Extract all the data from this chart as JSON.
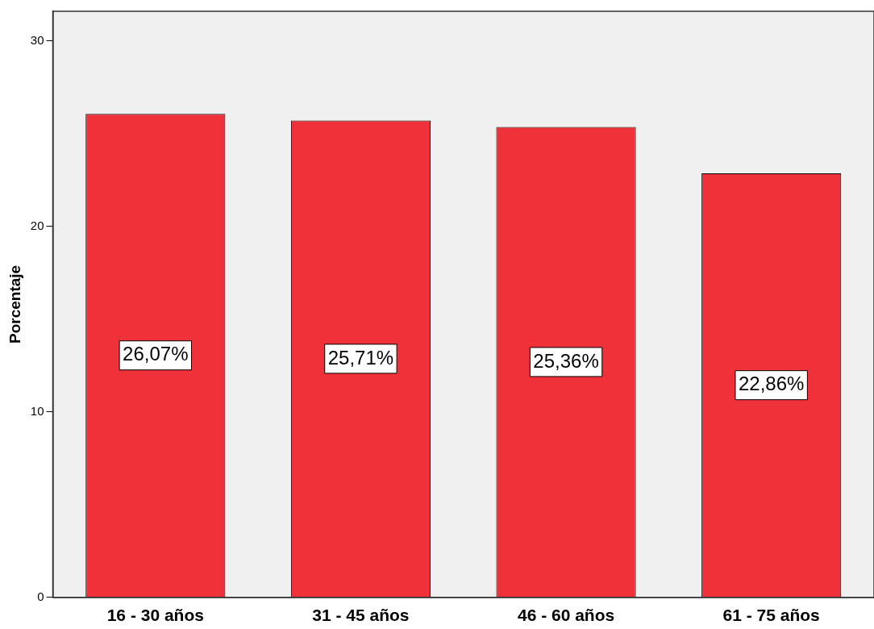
{
  "chart_data": {
    "type": "bar",
    "ylabel": "Porcentaje",
    "categories": [
      "16 - 30 años",
      "31 - 45 años",
      "46 - 60 años",
      "61 - 75 años"
    ],
    "values": [
      26.07,
      25.71,
      25.36,
      22.86
    ],
    "value_labels": [
      "26,07%",
      "25,71%",
      "25,36%",
      "22,86%"
    ],
    "color": "#ef3139",
    "ylim": [
      0,
      31.6
    ],
    "yticks": [
      0,
      10,
      20,
      30
    ]
  }
}
